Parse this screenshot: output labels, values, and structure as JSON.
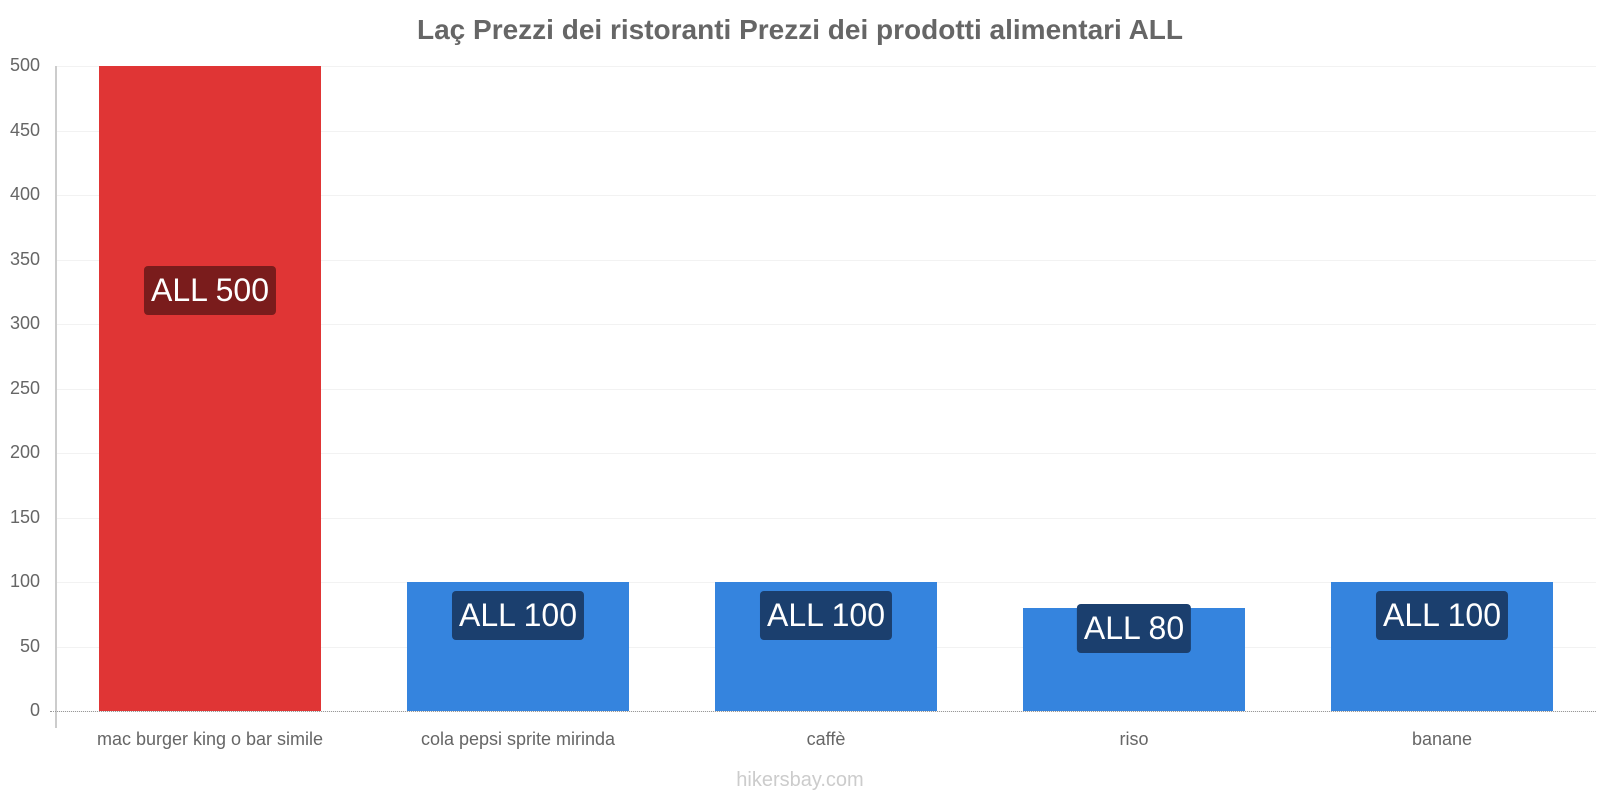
{
  "chart_data": {
    "type": "bar",
    "title": "Laç Prezzi dei ristoranti Prezzi dei prodotti alimentari ALL",
    "xlabel": "",
    "ylabel": "",
    "ylim": [
      0,
      500
    ],
    "yticks": [
      0,
      50,
      100,
      150,
      200,
      250,
      300,
      350,
      400,
      450,
      500
    ],
    "grid": true,
    "legend": null,
    "categories": [
      "mac burger king o bar simile",
      "cola pepsi sprite mirinda",
      "caffè",
      "riso",
      "banane"
    ],
    "values": [
      500,
      100,
      100,
      80,
      100
    ],
    "data_labels": [
      "ALL 500",
      "ALL 100",
      "ALL 100",
      "ALL 80",
      "ALL 100"
    ],
    "colors": [
      "#e03535",
      "#3584de",
      "#3584de",
      "#3584de",
      "#3584de"
    ],
    "label_bg_colors": [
      "#7a1c1c",
      "#1b3f6e",
      "#1b3f6e",
      "#1b3f6e",
      "#1b3f6e"
    ]
  },
  "watermark": "hikersbay.com"
}
